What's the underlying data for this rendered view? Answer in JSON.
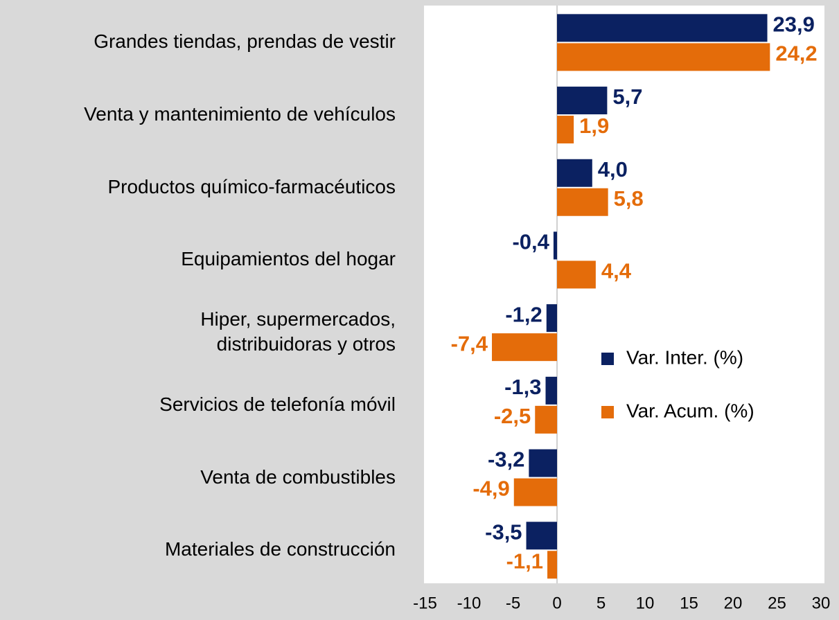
{
  "chart_data": {
    "type": "bar",
    "orientation": "horizontal",
    "categories": [
      "Grandes tiendas, prendas de vestir",
      "Venta y mantenimiento de vehículos",
      "Productos químico-farmacéuticos",
      "Equipamientos del hogar",
      "Hiper, supermercados,\ndistribuidoras y otros",
      "Servicios de telefonía móvil",
      "Venta de combustibles",
      "Materiales de construcción"
    ],
    "series": [
      {
        "name": "Var. Inter. (%)",
        "color": "#0b2161",
        "values": [
          23.9,
          5.7,
          4.0,
          -0.4,
          -1.2,
          -1.3,
          -3.2,
          -3.5
        ],
        "value_labels": [
          "23,9",
          "5,7",
          "4,0",
          "-0,4",
          "-1,2",
          "-1,3",
          "-3,2",
          "-3,5"
        ]
      },
      {
        "name": "Var. Acum. (%)",
        "color": "#e46c0a",
        "values": [
          24.2,
          1.9,
          5.8,
          4.4,
          -7.4,
          -2.5,
          -4.9,
          -1.1
        ],
        "value_labels": [
          "24,2",
          "1,9",
          "5,8",
          "4,4",
          "-7,4",
          "-2,5",
          "-4,9",
          "-1,1"
        ]
      }
    ],
    "xlim": [
      -15,
      30
    ],
    "xticks": [
      -15,
      -10,
      -5,
      0,
      5,
      10,
      15,
      20,
      25,
      30
    ],
    "grid": false,
    "legend": "right"
  }
}
